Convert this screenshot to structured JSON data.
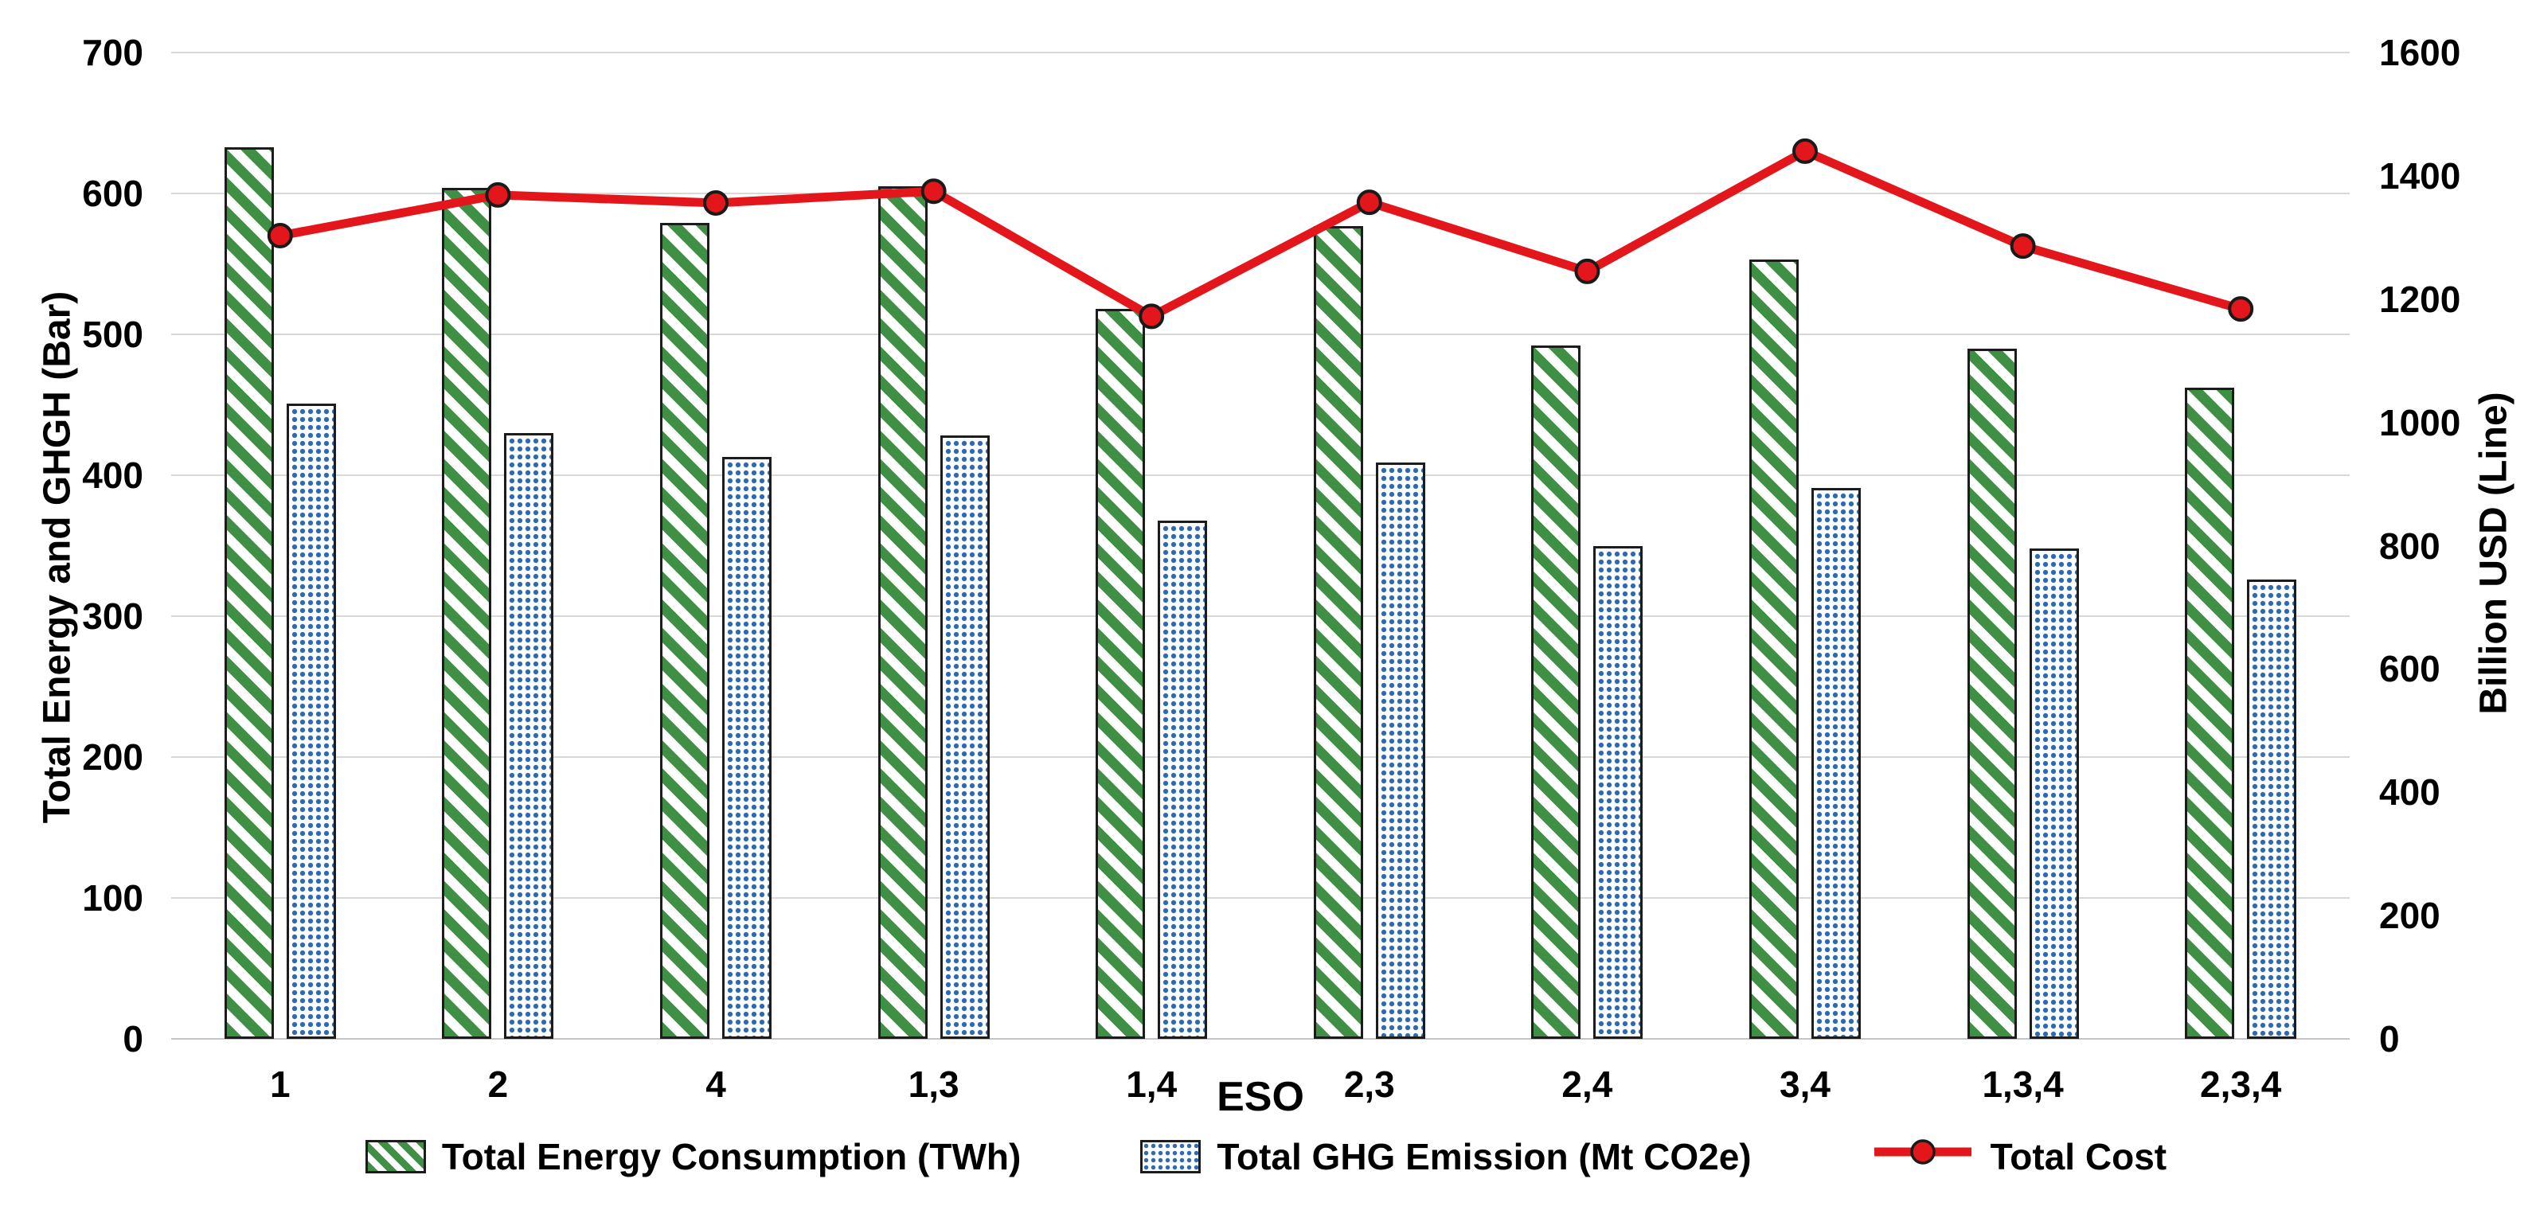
{
  "chart_data": {
    "type": "combo-bar-line",
    "categories": [
      "1",
      "2",
      "4",
      "1,3",
      "1,4",
      "2,3",
      "2,4",
      "3,4",
      "1,3,4",
      "2,3,4"
    ],
    "series": [
      {
        "name": "Total Energy Consumption (TWh)",
        "type": "bar",
        "axis": "left",
        "pattern": "green-diagonal-hatch",
        "color": "#3f9045",
        "values": [
          633,
          604,
          579,
          605,
          518,
          577,
          492,
          553,
          490,
          462
        ]
      },
      {
        "name": "Total GHG Emission (Mt CO2e)",
        "type": "bar",
        "axis": "left",
        "pattern": "blue-dots",
        "color": "#3069b0",
        "values": [
          451,
          430,
          413,
          428,
          368,
          409,
          350,
          391,
          348,
          326
        ]
      },
      {
        "name": "Total Cost",
        "type": "line",
        "axis": "right",
        "color": "#e2161b",
        "marker": "circle",
        "values": [
          1303,
          1369,
          1356,
          1375,
          1172,
          1357,
          1245,
          1440,
          1286,
          1184
        ]
      }
    ],
    "left_axis": {
      "label": "Total Energy and GHGH (Bar)",
      "min": 0,
      "max": 700,
      "step": 100,
      "ticks": [
        0,
        100,
        200,
        300,
        400,
        500,
        600,
        700
      ]
    },
    "right_axis": {
      "label": "Billion USD (Line)",
      "min": 0,
      "max": 1600,
      "step": 200,
      "ticks": [
        0,
        200,
        400,
        600,
        800,
        1000,
        1200,
        1400,
        1600
      ]
    },
    "x_axis": {
      "label": "ESO"
    },
    "grid": true,
    "legend_position": "bottom",
    "colors": {
      "bar_outline": "#1c1c1c",
      "gridline": "#d8d8d8",
      "marker_outline": "#1a1a1a",
      "text": "#000000",
      "background": "#ffffff"
    }
  }
}
